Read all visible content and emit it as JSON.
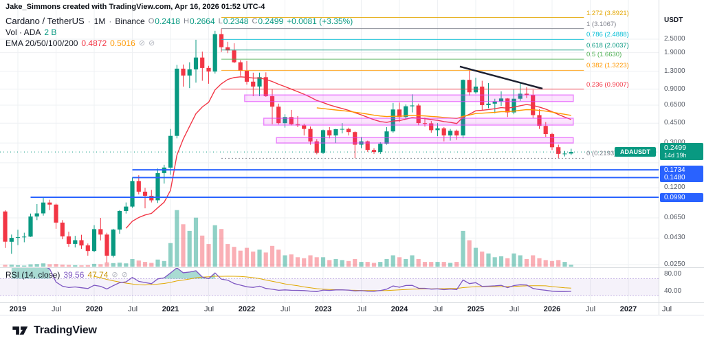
{
  "attribution": "Jake_Simmons created with TradingView.com, Apr 16, 2026 01:52 UTC-4",
  "colors": {
    "up": "#089981",
    "down": "#f23645",
    "vol_up": "rgba(8,153,129,0.45)",
    "vol_down": "rgba(242,54,69,0.4)",
    "grid": "#eef0f3",
    "zone_fill": "rgba(233,30,249,0.12)",
    "zone_border": "rgba(224,64,251,0.6)",
    "blue_line": "#2962ff",
    "rsi": "#7e57c2",
    "rsi_ma": "#e0a800",
    "rsi_band": "rgba(126,87,194,0.08)",
    "rsi_band_border": "rgba(126,87,194,0.4)",
    "rsi_over": "rgba(8,153,129,0.35)",
    "rsi_under": "rgba(242,54,69,0.3)",
    "badge_teal": "#089981",
    "badge_blue": "#2962ff"
  },
  "legend": {
    "symbol": "Cardano / TetherUS",
    "sep": "·",
    "interval": "1M",
    "exchange": "Binance",
    "open_label": "O",
    "open": "0.2418",
    "high_label": "H",
    "high": "0.2664",
    "low_label": "L",
    "low": "0.2348",
    "close_label": "C",
    "close": "0.2499",
    "change": "+0.0081 (+3.35%)"
  },
  "volume_row": {
    "label": "Vol · ADA",
    "value": "2 B"
  },
  "ema_row": {
    "label": "EMA 20/50/100/200",
    "ema20": "0.4872",
    "ema50": "0.5016",
    "hidden_icon": "⊘"
  },
  "rsi_row": {
    "label": "RSI (14, close)",
    "value": "39.56",
    "ma_value": "47.74",
    "hidden_icon": "⊘"
  },
  "price_scale": {
    "unit": "USDT",
    "ticks": [
      {
        "label": "2.5000",
        "price": 2.5
      },
      {
        "label": "1.9000",
        "price": 1.9
      },
      {
        "label": "1.3000",
        "price": 1.3
      },
      {
        "label": "0.9000",
        "price": 0.9
      },
      {
        "label": "0.6500",
        "price": 0.65
      },
      {
        "label": "0.4500",
        "price": 0.45
      },
      {
        "label": "0.3000",
        "price": 0.3
      },
      {
        "label": "0.1200",
        "price": 0.12
      },
      {
        "label": "0.0650",
        "price": 0.065
      },
      {
        "label": "0.0430",
        "price": 0.043
      },
      {
        "label": "0.0250",
        "price": 0.025
      }
    ],
    "grid_prices": [
      2.5,
      1.9,
      1.3,
      0.9,
      0.65,
      0.45,
      0.3,
      0.2,
      0.12,
      0.065,
      0.043,
      0.025
    ],
    "support_badges": [
      {
        "label": "0.1734",
        "price": 0.1734
      },
      {
        "label": "0.1480",
        "price": 0.148
      },
      {
        "label": "0.0990",
        "price": 0.099
      }
    ],
    "current": {
      "symbol_tag": "ADAUSDT",
      "price_label": "0.2499",
      "countdown": "14d 19h",
      "price": 0.2499
    }
  },
  "rsi_scale": {
    "ticks": [
      {
        "label": "80.00",
        "value": 80
      },
      {
        "label": "40.00",
        "value": 40
      }
    ]
  },
  "time_axis": {
    "labels": [
      {
        "text": "2019",
        "month": 2
      },
      {
        "text": "Jul",
        "month": 8
      },
      {
        "text": "2020",
        "month": 14
      },
      {
        "text": "Jul",
        "month": 20
      },
      {
        "text": "2021",
        "month": 26
      },
      {
        "text": "Jul",
        "month": 32
      },
      {
        "text": "2022",
        "month": 38
      },
      {
        "text": "Jul",
        "month": 44
      },
      {
        "text": "2023",
        "month": 50
      },
      {
        "text": "Jul",
        "month": 56
      },
      {
        "text": "2024",
        "month": 62
      },
      {
        "text": "Jul",
        "month": 68
      },
      {
        "text": "2025",
        "month": 74
      },
      {
        "text": "Jul",
        "month": 80
      },
      {
        "text": "2026",
        "month": 86
      },
      {
        "text": "Jul",
        "month": 92
      },
      {
        "text": "2027",
        "month": 98
      },
      {
        "text": "Jul",
        "month": 104
      }
    ]
  },
  "overlays": {
    "fibonacci": {
      "from_month": 34,
      "to_month": 91,
      "levels": [
        {
          "label": "1.272 (3.8921)",
          "level": "1.272",
          "price": 3.8921,
          "color": "#e3a600",
          "dashed": false
        },
        {
          "label": "1 (3.1067)",
          "level": "1",
          "price": 3.1067,
          "color": "#787b86",
          "dashed": false
        },
        {
          "label": "0.786 (2.4888)",
          "level": "0.786",
          "price": 2.4888,
          "color": "#00bcd4",
          "dashed": false
        },
        {
          "label": "0.618 (2.0037)",
          "level": "0.618",
          "price": 2.0037,
          "color": "#089981",
          "dashed": false
        },
        {
          "label": "0.5 (1.6630)",
          "level": "0.5",
          "price": 1.663,
          "color": "#4caf50",
          "dashed": false
        },
        {
          "label": "0.382 (1.3223)",
          "level": "0.382",
          "price": 1.3223,
          "color": "#ff9800",
          "dashed": false
        },
        {
          "label": "0.236 (0.9007)",
          "level": "0.236",
          "price": 0.9007,
          "color": "#f23645",
          "dashed": false
        },
        {
          "label": "0 (0.2193)",
          "level": "0",
          "price": 0.2193,
          "color": "#787b86",
          "dashed": true
        }
      ]
    },
    "support_lines": [
      {
        "price": 0.1734,
        "from_month": 20,
        "color": "#2962ff"
      },
      {
        "price": 0.148,
        "from_month": 20,
        "color": "#2962ff"
      },
      {
        "price": 0.099,
        "from_month": 4,
        "color": "#2962ff"
      }
    ],
    "zones": [
      {
        "from_month": 38,
        "to_month": 89,
        "price_top": 0.8,
        "price_bottom": 0.7
      },
      {
        "from_month": 41,
        "to_month": 89,
        "price_top": 0.498,
        "price_bottom": 0.433
      },
      {
        "from_month": 43,
        "to_month": 89,
        "price_top": 0.335,
        "price_bottom": 0.3
      }
    ],
    "trendline": {
      "from_month": 71.5,
      "from_price": 1.43,
      "to_month": 84.5,
      "to_price": 0.91,
      "color": "#1c2030"
    },
    "emas": [
      {
        "length": 20,
        "color": "#f23645"
      },
      {
        "length": 50,
        "color": "#ff9800"
      }
    ],
    "current_price_line": {
      "price": 0.2499,
      "color": "#089981"
    }
  },
  "footer": {
    "brand": "TradingView"
  },
  "chart_data": {
    "type": "candlestick",
    "title": "Cardano / TetherUS · 1M · Binance",
    "scale_y": "log",
    "price_unit": "USDT",
    "ylim": [
      0.022,
      3.95
    ],
    "grid": true,
    "time_range": {
      "start": "2018-11",
      "last_bar": "2026-04",
      "axis_end": "2027-07"
    },
    "columns": [
      "date",
      "open",
      "high",
      "low",
      "close",
      "volume_billion_ada"
    ],
    "candles": [
      [
        "2018-11",
        0.074,
        0.0758,
        0.0352,
        0.0399,
        2.0
      ],
      [
        "2018-12",
        0.0399,
        0.0462,
        0.0312,
        0.0432,
        2.2
      ],
      [
        "2019-01",
        0.0432,
        0.051,
        0.0372,
        0.0438,
        1.5
      ],
      [
        "2019-02",
        0.0438,
        0.048,
        0.0395,
        0.0443,
        1.2
      ],
      [
        "2019-03",
        0.0443,
        0.071,
        0.044,
        0.0668,
        2.5
      ],
      [
        "2019-04",
        0.0668,
        0.086,
        0.062,
        0.0712,
        2.8
      ],
      [
        "2019-05",
        0.0712,
        0.098,
        0.068,
        0.0889,
        3.5
      ],
      [
        "2019-06",
        0.0889,
        0.094,
        0.076,
        0.0852,
        2.6
      ],
      [
        "2019-07",
        0.0852,
        0.087,
        0.052,
        0.059,
        2.8
      ],
      [
        "2019-08",
        0.059,
        0.062,
        0.042,
        0.0445,
        2.2
      ],
      [
        "2019-09",
        0.0445,
        0.049,
        0.036,
        0.0382,
        1.8
      ],
      [
        "2019-10",
        0.0382,
        0.045,
        0.0355,
        0.0412,
        1.5
      ],
      [
        "2019-11",
        0.0412,
        0.046,
        0.0345,
        0.037,
        1.4
      ],
      [
        "2019-12",
        0.037,
        0.0385,
        0.03,
        0.033,
        1.6
      ],
      [
        "2020-01",
        0.033,
        0.056,
        0.0322,
        0.0516,
        3.0
      ],
      [
        "2020-02",
        0.0516,
        0.065,
        0.041,
        0.0462,
        2.6
      ],
      [
        "2020-03",
        0.0462,
        0.048,
        0.026,
        0.03,
        4.5
      ],
      [
        "2020-04",
        0.03,
        0.052,
        0.029,
        0.0512,
        3.8
      ],
      [
        "2020-05",
        0.0512,
        0.076,
        0.047,
        0.0748,
        4.2
      ],
      [
        "2020-06",
        0.0748,
        0.089,
        0.071,
        0.0818,
        3.5
      ],
      [
        "2020-07",
        0.0818,
        0.148,
        0.08,
        0.138,
        8.0
      ],
      [
        "2020-08",
        0.138,
        0.155,
        0.105,
        0.111,
        6.5
      ],
      [
        "2020-09",
        0.111,
        0.12,
        0.079,
        0.102,
        5.0
      ],
      [
        "2020-10",
        0.102,
        0.115,
        0.089,
        0.093,
        4.0
      ],
      [
        "2020-11",
        0.093,
        0.178,
        0.088,
        0.162,
        7.5
      ],
      [
        "2020-12",
        0.162,
        0.192,
        0.131,
        0.1815,
        6.0
      ],
      [
        "2021-01",
        0.1815,
        0.4,
        0.157,
        0.347,
        25
      ],
      [
        "2021-02",
        0.347,
        1.48,
        0.33,
        1.37,
        60
      ],
      [
        "2021-03",
        1.37,
        1.49,
        0.95,
        1.19,
        45
      ],
      [
        "2021-04",
        1.19,
        1.56,
        0.92,
        1.35,
        38
      ],
      [
        "2021-05",
        1.35,
        2.47,
        1.03,
        1.72,
        52
      ],
      [
        "2021-06",
        1.72,
        1.94,
        1.07,
        1.39,
        33
      ],
      [
        "2021-07",
        1.39,
        1.45,
        1.005,
        1.29,
        24
      ],
      [
        "2021-08",
        1.29,
        2.97,
        1.24,
        2.77,
        44
      ],
      [
        "2021-09",
        2.77,
        3.1067,
        1.92,
        2.12,
        40
      ],
      [
        "2021-10",
        2.12,
        2.37,
        1.88,
        1.99,
        24
      ],
      [
        "2021-11",
        1.99,
        2.3,
        1.53,
        1.56,
        21
      ],
      [
        "2021-12",
        1.56,
        1.63,
        1.18,
        1.31,
        17
      ],
      [
        "2022-01",
        1.31,
        1.6,
        0.99,
        1.05,
        20
      ],
      [
        "2022-02",
        1.05,
        1.26,
        0.78,
        0.95,
        16
      ],
      [
        "2022-03",
        0.95,
        1.26,
        0.78,
        1.15,
        18
      ],
      [
        "2022-04",
        1.15,
        1.27,
        0.77,
        0.78,
        15
      ],
      [
        "2022-05",
        0.78,
        0.9,
        0.44,
        0.63,
        22
      ],
      [
        "2022-06",
        0.63,
        0.67,
        0.438,
        0.45,
        18
      ],
      [
        "2022-07",
        0.45,
        0.54,
        0.41,
        0.51,
        12
      ],
      [
        "2022-08",
        0.51,
        0.59,
        0.43,
        0.44,
        13
      ],
      [
        "2022-09",
        0.44,
        0.52,
        0.415,
        0.43,
        10
      ],
      [
        "2022-10",
        0.43,
        0.445,
        0.35,
        0.4,
        9
      ],
      [
        "2022-11",
        0.4,
        0.42,
        0.29,
        0.31,
        12
      ],
      [
        "2022-12",
        0.31,
        0.325,
        0.238,
        0.245,
        10
      ],
      [
        "2023-01",
        0.245,
        0.395,
        0.24,
        0.39,
        10
      ],
      [
        "2023-02",
        0.39,
        0.415,
        0.33,
        0.35,
        7
      ],
      [
        "2023-03",
        0.35,
        0.4,
        0.3,
        0.398,
        8
      ],
      [
        "2023-04",
        0.398,
        0.45,
        0.365,
        0.4,
        7
      ],
      [
        "2023-05",
        0.4,
        0.41,
        0.35,
        0.375,
        6
      ],
      [
        "2023-06",
        0.375,
        0.38,
        0.22,
        0.29,
        8
      ],
      [
        "2023-07",
        0.29,
        0.34,
        0.27,
        0.31,
        5
      ],
      [
        "2023-08",
        0.31,
        0.315,
        0.25,
        0.26,
        5
      ],
      [
        "2023-09",
        0.26,
        0.27,
        0.24,
        0.25,
        4
      ],
      [
        "2023-10",
        0.25,
        0.305,
        0.24,
        0.295,
        5
      ],
      [
        "2023-11",
        0.295,
        0.415,
        0.29,
        0.38,
        8
      ],
      [
        "2023-12",
        0.38,
        0.68,
        0.37,
        0.595,
        12
      ],
      [
        "2024-01",
        0.595,
        0.685,
        0.46,
        0.51,
        10
      ],
      [
        "2024-02",
        0.51,
        0.66,
        0.485,
        0.635,
        8
      ],
      [
        "2024-03",
        0.635,
        0.81,
        0.56,
        0.645,
        12
      ],
      [
        "2024-04",
        0.645,
        0.67,
        0.43,
        0.45,
        8
      ],
      [
        "2024-05",
        0.45,
        0.505,
        0.42,
        0.448,
        5
      ],
      [
        "2024-06",
        0.448,
        0.47,
        0.37,
        0.39,
        5
      ],
      [
        "2024-07",
        0.39,
        0.45,
        0.345,
        0.405,
        5
      ],
      [
        "2024-08",
        0.405,
        0.415,
        0.31,
        0.35,
        5
      ],
      [
        "2024-09",
        0.35,
        0.4,
        0.315,
        0.385,
        4
      ],
      [
        "2024-10",
        0.385,
        0.395,
        0.32,
        0.35,
        5
      ],
      [
        "2024-11",
        0.35,
        1.1,
        0.33,
        1.09,
        38
      ],
      [
        "2024-12",
        1.09,
        1.33,
        0.79,
        0.845,
        28
      ],
      [
        "2025-01",
        0.845,
        1.14,
        0.82,
        0.95,
        20
      ],
      [
        "2025-02",
        0.95,
        1.07,
        0.59,
        0.65,
        16
      ],
      [
        "2025-03",
        0.65,
        1.02,
        0.61,
        0.67,
        14
      ],
      [
        "2025-04",
        0.67,
        0.74,
        0.55,
        0.7,
        10
      ],
      [
        "2025-05",
        0.7,
        0.86,
        0.64,
        0.745,
        11
      ],
      [
        "2025-06",
        0.745,
        0.75,
        0.51,
        0.56,
        9
      ],
      [
        "2025-07",
        0.56,
        0.9,
        0.54,
        0.74,
        14
      ],
      [
        "2025-08",
        0.74,
        1.02,
        0.71,
        0.82,
        12
      ],
      [
        "2025-09",
        0.82,
        0.94,
        0.75,
        0.8,
        8
      ],
      [
        "2025-10",
        0.8,
        0.89,
        0.5,
        0.53,
        12
      ],
      [
        "2025-11",
        0.53,
        0.6,
        0.4,
        0.425,
        9
      ],
      [
        "2025-12",
        0.425,
        0.46,
        0.34,
        0.36,
        7
      ],
      [
        "2026-01",
        0.36,
        0.37,
        0.26,
        0.275,
        6
      ],
      [
        "2026-02",
        0.275,
        0.29,
        0.2193,
        0.24,
        7
      ],
      [
        "2026-03",
        0.24,
        0.255,
        0.228,
        0.2418,
        5
      ],
      [
        "2026-04",
        0.2418,
        0.2664,
        0.2348,
        0.2499,
        2
      ]
    ],
    "indicators": [
      {
        "name": "Volume",
        "unit": "ADA",
        "current_label": "2 B"
      },
      {
        "name": "EMA",
        "lengths": [
          20,
          50,
          100,
          200
        ],
        "visible_values": {
          "20": 0.4872,
          "50": 0.5016
        },
        "hidden": [
          100,
          200
        ]
      },
      {
        "name": "RSI",
        "length": 14,
        "source": "close",
        "value": 39.56,
        "ma_value": 47.74,
        "bands": [
          70,
          30
        ],
        "scale_ticks": [
          80,
          40
        ]
      }
    ]
  }
}
